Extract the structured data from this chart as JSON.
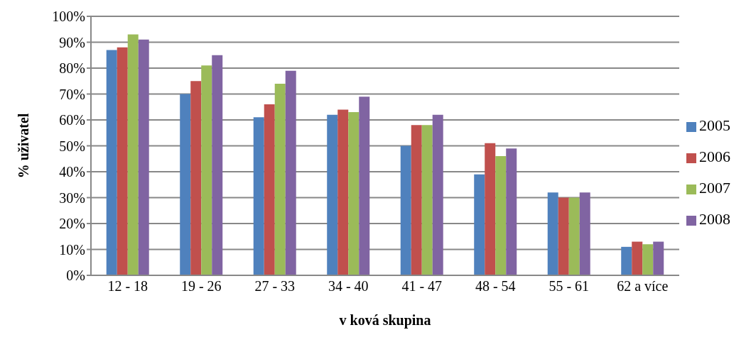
{
  "chart_data": {
    "type": "bar",
    "xlabel": "v  ková skupina",
    "ylabel": "% uživatel",
    "categories": [
      "12 - 18",
      "19 - 26",
      "27 - 33",
      "34 - 40",
      "41 - 47",
      "48 - 54",
      "55 - 61",
      "62 a více"
    ],
    "series": [
      {
        "name": "2005",
        "color": "#4f81bd",
        "values": [
          87,
          70,
          61,
          62,
          50,
          39,
          32,
          11
        ]
      },
      {
        "name": "2006",
        "color": "#c0504d",
        "values": [
          88,
          75,
          66,
          64,
          58,
          51,
          30,
          13
        ]
      },
      {
        "name": "2007",
        "color": "#9bbb59",
        "values": [
          93,
          81,
          74,
          63,
          58,
          46,
          30,
          12
        ]
      },
      {
        "name": "2008",
        "color": "#8064a2",
        "values": [
          91,
          85,
          79,
          69,
          62,
          49,
          32,
          13
        ]
      }
    ],
    "ylim": [
      0,
      100
    ],
    "yticks": [
      {
        "value": 0,
        "label": "0%"
      },
      {
        "value": 10,
        "label": "10%"
      },
      {
        "value": 20,
        "label": "20%"
      },
      {
        "value": 30,
        "label": "30%"
      },
      {
        "value": 40,
        "label": "40%"
      },
      {
        "value": 50,
        "label": "50%"
      },
      {
        "value": 60,
        "label": "60%"
      },
      {
        "value": 70,
        "label": "70%"
      },
      {
        "value": 80,
        "label": "80%"
      },
      {
        "value": 90,
        "label": "90%"
      },
      {
        "value": 100,
        "label": "100%"
      }
    ],
    "grid": true,
    "legend": "right"
  }
}
